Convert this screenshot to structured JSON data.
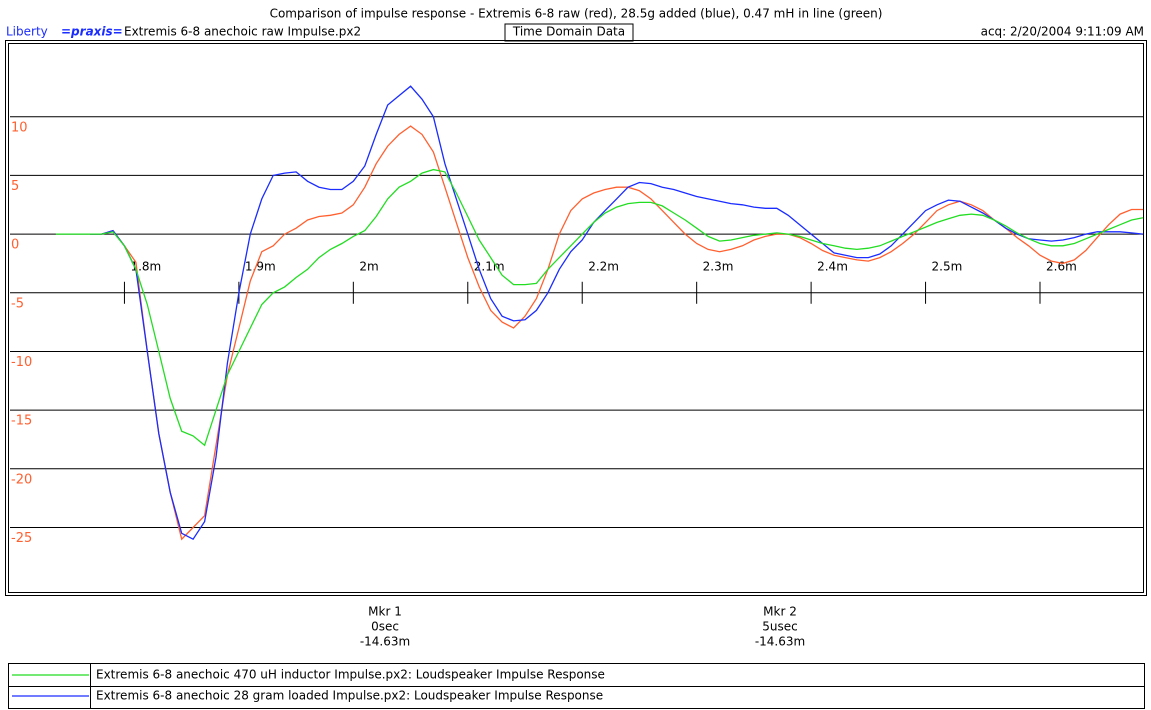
{
  "chart_data": {
    "type": "line",
    "title": "Comparison of impulse response - Extremis 6-8 raw (red), 28.5g added (blue), 0.47 mH in line (green)",
    "header_left": "Liberty",
    "header_brand": "=praxis=",
    "header_file": "Extremis 6-8 anechoic raw Impulse.px2",
    "header_mode": "Time Domain Data",
    "header_acq": "acq: 2/20/2004 9:11:09 AM",
    "markers": [
      {
        "name": "Mkr 1",
        "time": "0sec",
        "level": "-14.63m"
      },
      {
        "name": "Mkr 2",
        "time": "5usec",
        "level": "-14.63m"
      }
    ],
    "xlim": [
      1.7,
      2.69
    ],
    "ylim": [
      -30.5,
      16.2
    ],
    "xticks": [
      {
        "value": 1.8,
        "label": "1.8m"
      },
      {
        "value": 1.9,
        "label": "1.9m"
      },
      {
        "value": 2.0,
        "label": "2m"
      },
      {
        "value": 2.1,
        "label": "2.1m"
      },
      {
        "value": 2.2,
        "label": "2.2m"
      },
      {
        "value": 2.3,
        "label": "2.3m"
      },
      {
        "value": 2.4,
        "label": "2.4m"
      },
      {
        "value": 2.5,
        "label": "2.5m"
      },
      {
        "value": 2.6,
        "label": "2.6m"
      }
    ],
    "yticks": [
      10,
      5,
      0,
      -5,
      -10,
      -15,
      -20,
      -25
    ],
    "grid": true,
    "x": [
      1.74,
      1.75,
      1.76,
      1.77,
      1.78,
      1.79,
      1.8,
      1.81,
      1.82,
      1.83,
      1.84,
      1.85,
      1.86,
      1.87,
      1.88,
      1.89,
      1.9,
      1.91,
      1.92,
      1.93,
      1.94,
      1.95,
      1.96,
      1.97,
      1.98,
      1.99,
      2.0,
      2.01,
      2.02,
      2.03,
      2.04,
      2.05,
      2.06,
      2.07,
      2.08,
      2.09,
      2.1,
      2.11,
      2.12,
      2.13,
      2.14,
      2.15,
      2.16,
      2.17,
      2.18,
      2.19,
      2.2,
      2.21,
      2.22,
      2.23,
      2.24,
      2.25,
      2.26,
      2.27,
      2.28,
      2.29,
      2.3,
      2.31,
      2.32,
      2.33,
      2.34,
      2.35,
      2.36,
      2.37,
      2.38,
      2.39,
      2.4,
      2.41,
      2.42,
      2.43,
      2.44,
      2.45,
      2.46,
      2.47,
      2.48,
      2.49,
      2.5,
      2.51,
      2.52,
      2.53,
      2.54,
      2.55,
      2.56,
      2.57,
      2.58,
      2.59,
      2.6,
      2.61,
      2.62,
      2.63,
      2.64,
      2.65,
      2.66,
      2.67,
      2.68,
      2.69
    ],
    "series": [
      {
        "color": "#ff6030",
        "values": [
          null,
          null,
          null,
          0,
          0,
          0.3,
          -1,
          -2.4,
          -10,
          -17,
          -22,
          -26,
          -25,
          -24,
          -18,
          -12,
          -8,
          -4,
          -1.5,
          -1,
          0,
          0.5,
          1.2,
          1.5,
          1.6,
          1.8,
          2.5,
          4,
          6,
          7.5,
          8.5,
          9.2,
          8.5,
          7,
          4,
          1,
          -2,
          -4.5,
          -6.5,
          -7.5,
          -8,
          -7,
          -5.5,
          -3,
          0,
          2,
          3,
          3.5,
          3.8,
          4,
          4,
          3.7,
          3,
          2,
          1,
          0,
          -0.8,
          -1.3,
          -1.5,
          -1.3,
          -1,
          -0.5,
          -0.2,
          0,
          0,
          -0.3,
          -0.8,
          -1.4,
          -1.8,
          -2,
          -2.2,
          -2.3,
          -2,
          -1.5,
          -0.8,
          0,
          1,
          2,
          2.5,
          2.8,
          2.5,
          2,
          1.2,
          0.5,
          -0.3,
          -1,
          -1.8,
          -2.3,
          -2.5,
          -2.2,
          -1.4,
          -0.3,
          0.8,
          1.7,
          2.1,
          2.1
        ]
      },
      {
        "name": "Extremis 6-8 anechoic 28 gram loaded Impulse.px2:  Loudspeaker Impulse Response",
        "color": "#1a2cff",
        "values": [
          null,
          null,
          null,
          0,
          0,
          0.3,
          -1,
          -3,
          -10,
          -17,
          -22,
          -25.5,
          -26,
          -24.5,
          -19,
          -11,
          -5,
          0,
          3,
          5,
          5.2,
          5.3,
          4.5,
          4,
          3.8,
          3.8,
          4.5,
          5.8,
          8.5,
          11,
          11.8,
          12.6,
          11.5,
          10,
          6,
          3,
          0,
          -3,
          -5.5,
          -7,
          -7.4,
          -7.3,
          -6.5,
          -5,
          -3,
          -1.5,
          -0.5,
          1,
          2,
          3,
          4,
          4.4,
          4.3,
          4,
          3.8,
          3.5,
          3.2,
          3,
          2.8,
          2.6,
          2.5,
          2.3,
          2.2,
          2.2,
          1.6,
          0.8,
          0,
          -0.8,
          -1.6,
          -1.8,
          -2,
          -2,
          -1.7,
          -1,
          0,
          1,
          2,
          2.5,
          2.9,
          2.8,
          2.3,
          1.8,
          1.2,
          0.5,
          0,
          -0.4,
          -0.5,
          -0.6,
          -0.5,
          -0.3,
          0,
          0.2,
          0.2,
          0.2,
          0.1,
          0
        ]
      },
      {
        "name": "Extremis 6-8 anechoic 470 uH inductor Impulse.px2:  Loudspeaker Impulse Response",
        "color": "#22dd22",
        "values": [
          0,
          0,
          0,
          0,
          0,
          0.2,
          -1,
          -3,
          -6,
          -10,
          -14,
          -16.8,
          -17.2,
          -18,
          -15,
          -12,
          -10,
          -8,
          -6,
          -5,
          -4.5,
          -3.7,
          -3,
          -2,
          -1.3,
          -0.8,
          -0.2,
          0.3,
          1.5,
          3,
          4,
          4.5,
          5.2,
          5.5,
          5.3,
          3.5,
          1.5,
          -0.5,
          -2,
          -3.5,
          -4.3,
          -4.3,
          -4.2,
          -3,
          -2,
          -1,
          0,
          1,
          1.8,
          2.3,
          2.6,
          2.7,
          2.7,
          2.4,
          1.8,
          1.2,
          0.5,
          -0.2,
          -0.6,
          -0.5,
          -0.3,
          -0.1,
          0,
          0.1,
          0,
          -0.2,
          -0.5,
          -0.8,
          -1,
          -1.2,
          -1.3,
          -1.2,
          -1,
          -0.6,
          -0.2,
          0.2,
          0.6,
          1,
          1.3,
          1.6,
          1.7,
          1.6,
          1.2,
          0.7,
          0.1,
          -0.4,
          -0.8,
          -1,
          -1,
          -0.8,
          -0.4,
          0,
          0.4,
          0.8,
          1.2,
          1.4
        ]
      }
    ]
  }
}
